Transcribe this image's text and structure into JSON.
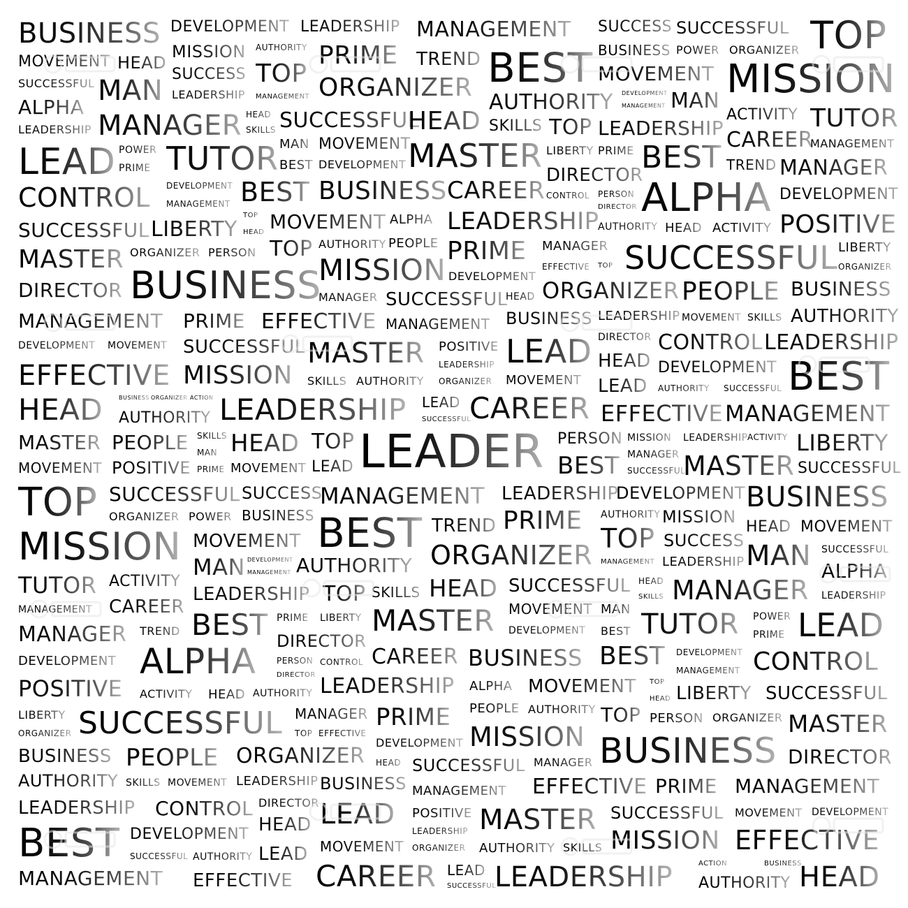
{
  "gradient": [
    "#000000",
    "#b4b4b4"
  ],
  "background": "#ffffff",
  "words": [
    "BUSINESS",
    "DEVELOPMENT",
    "LEADERSHIP",
    "MANAGEMENT",
    "SUCCESS",
    "SUCCESSFUL",
    "TOP",
    "MOVEMENT",
    "HEAD",
    "MISSION",
    "AUTHORITY",
    "PRIME",
    "TREND",
    "BEST",
    "BUSINESS",
    "POWER",
    "ORGANIZER",
    "SUCCESSFUL",
    "MAN",
    "SUCCESS",
    "TOP",
    "ORGANIZER",
    "MOVEMENT",
    "MISSION",
    "ALPHA",
    "LEADERSHIP",
    "MANAGEMENT",
    "AUTHORITY",
    "DEVELOPMENT",
    "MANAGEMENT",
    "MAN",
    "LEADERSHIP",
    "MANAGER",
    "HEAD",
    "SKILLS",
    "SUCCESSFUL",
    "HEAD",
    "SKILLS",
    "TOP",
    "LEADERSHIP",
    "ACTIVITY",
    "TUTOR",
    "LEAD",
    "POWER",
    "PRIME",
    "TUTOR",
    "MAN",
    "BEST",
    "MOVEMENT",
    "DEVELOPMENT",
    "MASTER",
    "LIBERTY",
    "PRIME",
    "DIRECTOR",
    "BEST",
    "CAREER",
    "TREND",
    "MANAGEMENT",
    "MANAGER",
    "CONTROL",
    "DEVELOPMENT",
    "MANAGEMENT",
    "BEST",
    "BUSINESS",
    "CAREER",
    "CONTROL",
    "PERSON",
    "DIRECTOR",
    "ALPHA",
    "DEVELOPMENT",
    "SUCCESSFUL",
    "LIBERTY",
    "TOP",
    "HEAD",
    "MOVEMENT",
    "ALPHA",
    "LEADERSHIP",
    "AUTHORITY",
    "HEAD",
    "ACTIVITY",
    "POSITIVE",
    "MASTER",
    "ORGANIZER",
    "PERSON",
    "TOP",
    "AUTHORITY",
    "PEOPLE",
    "PRIME",
    "MANAGER",
    "EFFECTIVE",
    "TOP",
    "SUCCESSFUL",
    "LIBERTY",
    "ORGANIZER",
    "DIRECTOR",
    "BUSINESS",
    "MISSION",
    "DEVELOPMENT",
    "MANAGER",
    "SUCCESSFUL",
    "HEAD",
    "ORGANIZER",
    "PEOPLE",
    "BUSINESS",
    "MANAGEMENT",
    "PRIME",
    "EFFECTIVE",
    "MANAGEMENT",
    "BUSINESS",
    "LEADERSHIP",
    "MOVEMENT",
    "SKILLS",
    "AUTHORITY",
    "DEVELOPMENT",
    "MOVEMENT",
    "SUCCESSFUL",
    "MASTER",
    "POSITIVE",
    "LEAD",
    "DIRECTOR",
    "CONTROL",
    "LEADERSHIP",
    "LEADERSHIP",
    "HEAD",
    "DEVELOPMENT",
    "EFFECTIVE",
    "MISSION",
    "SKILLS",
    "AUTHORITY",
    "ORGANIZER",
    "MOVEMENT",
    "LEAD",
    "AUTHORITY",
    "SUCCESSFUL",
    "BEST",
    "HEAD",
    "BUSINESS",
    "ORGANIZER",
    "ACTION",
    "LEADERSHIP",
    "LEAD",
    "CAREER",
    "SUCCESSFUL",
    "EFFECTIVE",
    "MANAGEMENT",
    "AUTHORITY",
    "MASTER",
    "PEOPLE",
    "SKILLS",
    "HEAD",
    "TOP",
    "LEADER",
    "PERSON",
    "MISSION",
    "LEADERSHIP",
    "ACTIVITY",
    "LIBERTY",
    "MAN",
    "MANAGER",
    "MOVEMENT",
    "POSITIVE",
    "PRIME",
    "MOVEMENT",
    "LEAD",
    "BEST",
    "SUCCESSFUL",
    "MASTER",
    "SUCCESSFUL",
    "TOP",
    "SUCCESSFUL",
    "SUCCESS",
    "MANAGEMENT",
    "LEADERSHIP",
    "DEVELOPMENT",
    "BUSINESS",
    "ORGANIZER",
    "POWER",
    "BUSINESS",
    "AUTHORITY",
    "MISSION",
    "HEAD",
    "MOVEMENT",
    "BEST",
    "TREND",
    "PRIME",
    "MISSION",
    "MOVEMENT",
    "TOP",
    "SUCCESS",
    "SUCCESSFUL",
    "MAN",
    "DEVELOPMENT",
    "MANAGEMENT",
    "AUTHORITY",
    "ORGANIZER",
    "MANAGEMENT",
    "LEADERSHIP",
    "MAN",
    "TUTOR",
    "ACTIVITY",
    "ALPHA",
    "LEADERSHIP",
    "TOP",
    "SKILLS",
    "HEAD",
    "SUCCESSFUL",
    "HEAD",
    "SKILLS",
    "MANAGER",
    "LEADERSHIP",
    "MANAGEMENT",
    "CAREER",
    "MOVEMENT",
    "MAN",
    "MANAGER",
    "BEST",
    "PRIME",
    "LIBERTY",
    "MASTER",
    "DEVELOPMENT",
    "BEST",
    "TUTOR",
    "POWER",
    "PRIME",
    "LEAD",
    "TREND",
    "DEVELOPMENT",
    "DIRECTOR",
    "ALPHA",
    "PERSON",
    "CONTROL",
    "DIRECTOR",
    "CAREER",
    "BUSINESS",
    "BEST",
    "DEVELOPMENT",
    "MANAGEMENT",
    "CONTROL",
    "POSITIVE",
    "ACTIVITY",
    "HEAD",
    "AUTHORITY",
    "LEADERSHIP",
    "ALPHA",
    "MOVEMENT",
    "TOP",
    "HEAD",
    "LIBERTY",
    "SUCCESSFUL",
    "LIBERTY",
    "SUCCESSFUL",
    "MANAGER",
    "TOP",
    "EFFECTIVE",
    "PRIME",
    "PEOPLE",
    "AUTHORITY",
    "TOP",
    "PERSON",
    "ORGANIZER",
    "MASTER",
    "ORGANIZER",
    "BUSINESS",
    "PEOPLE",
    "ORGANIZER",
    "DEVELOPMENT",
    "HEAD",
    "MISSION",
    "BUSINESS",
    "DIRECTOR",
    "SUCCESSFUL",
    "MANAGER",
    "AUTHORITY",
    "SKILLS",
    "MOVEMENT",
    "LEADERSHIP",
    "BUSINESS",
    "MANAGEMENT",
    "EFFECTIVE",
    "PRIME",
    "MANAGEMENT",
    "LEADERSHIP",
    "CONTROL",
    "DIRECTOR",
    "LEAD",
    "POSITIVE",
    "MASTER",
    "SUCCESSFUL",
    "MOVEMENT",
    "DEVELOPMENT",
    "LEADERSHIP",
    "HEAD",
    "BEST",
    "DEVELOPMENT",
    "ORGANIZER",
    "MISSION",
    "EFFECTIVE",
    "SUCCESSFUL",
    "AUTHORITY",
    "LEAD",
    "MOVEMENT",
    "AUTHORITY",
    "SKILLS",
    "MANAGEMENT",
    "EFFECTIVE",
    "CAREER",
    "LEAD",
    "SUCCESSFUL",
    "LEADERSHIP",
    "ACTION",
    "BUSINESS",
    "AUTHORITY",
    "HEAD"
  ]
}
